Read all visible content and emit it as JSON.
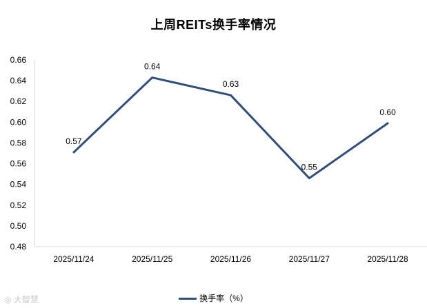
{
  "chart_data": {
    "type": "line",
    "title": "上周REITs换手率情况",
    "categories": [
      "2025/11/24",
      "2025/11/25",
      "2025/11/26",
      "2025/11/27",
      "2025/11/28"
    ],
    "series": [
      {
        "name": "换手率（%）",
        "values": [
          0.571,
          0.643,
          0.626,
          0.546,
          0.599
        ],
        "labels": [
          "0.57",
          "0.64",
          "0.63",
          "0.55",
          "0.60"
        ]
      }
    ],
    "ylim": [
      0.48,
      0.66
    ],
    "yticks": [
      "0.48",
      "0.50",
      "0.52",
      "0.54",
      "0.56",
      "0.58",
      "0.60",
      "0.62",
      "0.64",
      "0.66"
    ],
    "grid": false,
    "legend_position": "bottom",
    "line_color": "#2e4d7f"
  },
  "watermark": "大智慧"
}
